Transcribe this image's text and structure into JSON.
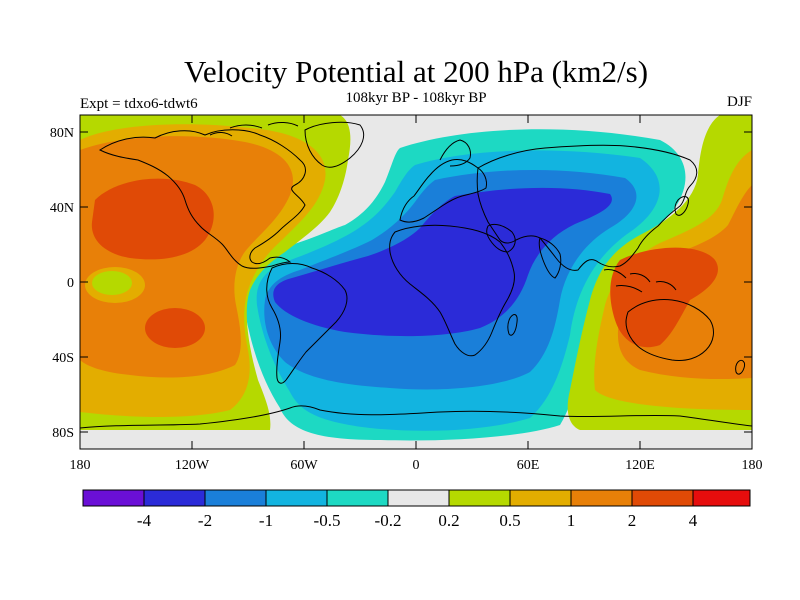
{
  "title": "Velocity Potential at 200 hPa (km2/s)",
  "subtitle": "108kyr BP - 108kyr BP",
  "left_label": "Expt = tdxo6-tdwt6",
  "right_label": "DJF",
  "lat_ticks": [
    "80N",
    "40N",
    "0",
    "40S",
    "80S"
  ],
  "lon_ticks": [
    "180",
    "120W",
    "60W",
    "0",
    "60E",
    "120E",
    "180"
  ],
  "colorbar": {
    "colors": [
      "#6a0fd6",
      "#2b2bd8",
      "#1a7fd9",
      "#12b4e0",
      "#1dd9c3",
      "#e8e8e8",
      "#b5d900",
      "#e3ad00",
      "#e88008",
      "#e04a06",
      "#e60d0d"
    ],
    "labels": [
      "-4",
      "-2",
      "-1",
      "-0.5",
      "-0.2",
      "0.2",
      "0.5",
      "1",
      "2",
      "4"
    ]
  },
  "chart_data": {
    "type": "heatmap",
    "title": "Velocity Potential at 200 hPa (km2/s)",
    "variable": "Velocity Potential",
    "level": "200 hPa",
    "units": "km2/s",
    "experiment": "tdxo6-tdwt6",
    "period": "108kyr BP - 108kyr BP",
    "season": "DJF",
    "lon_range": [
      -180,
      180
    ],
    "lat_range": [
      -90,
      90
    ],
    "contour_levels": [
      -4,
      -2,
      -1,
      -0.5,
      -0.2,
      0.2,
      0.5,
      1,
      2,
      4
    ]
  }
}
